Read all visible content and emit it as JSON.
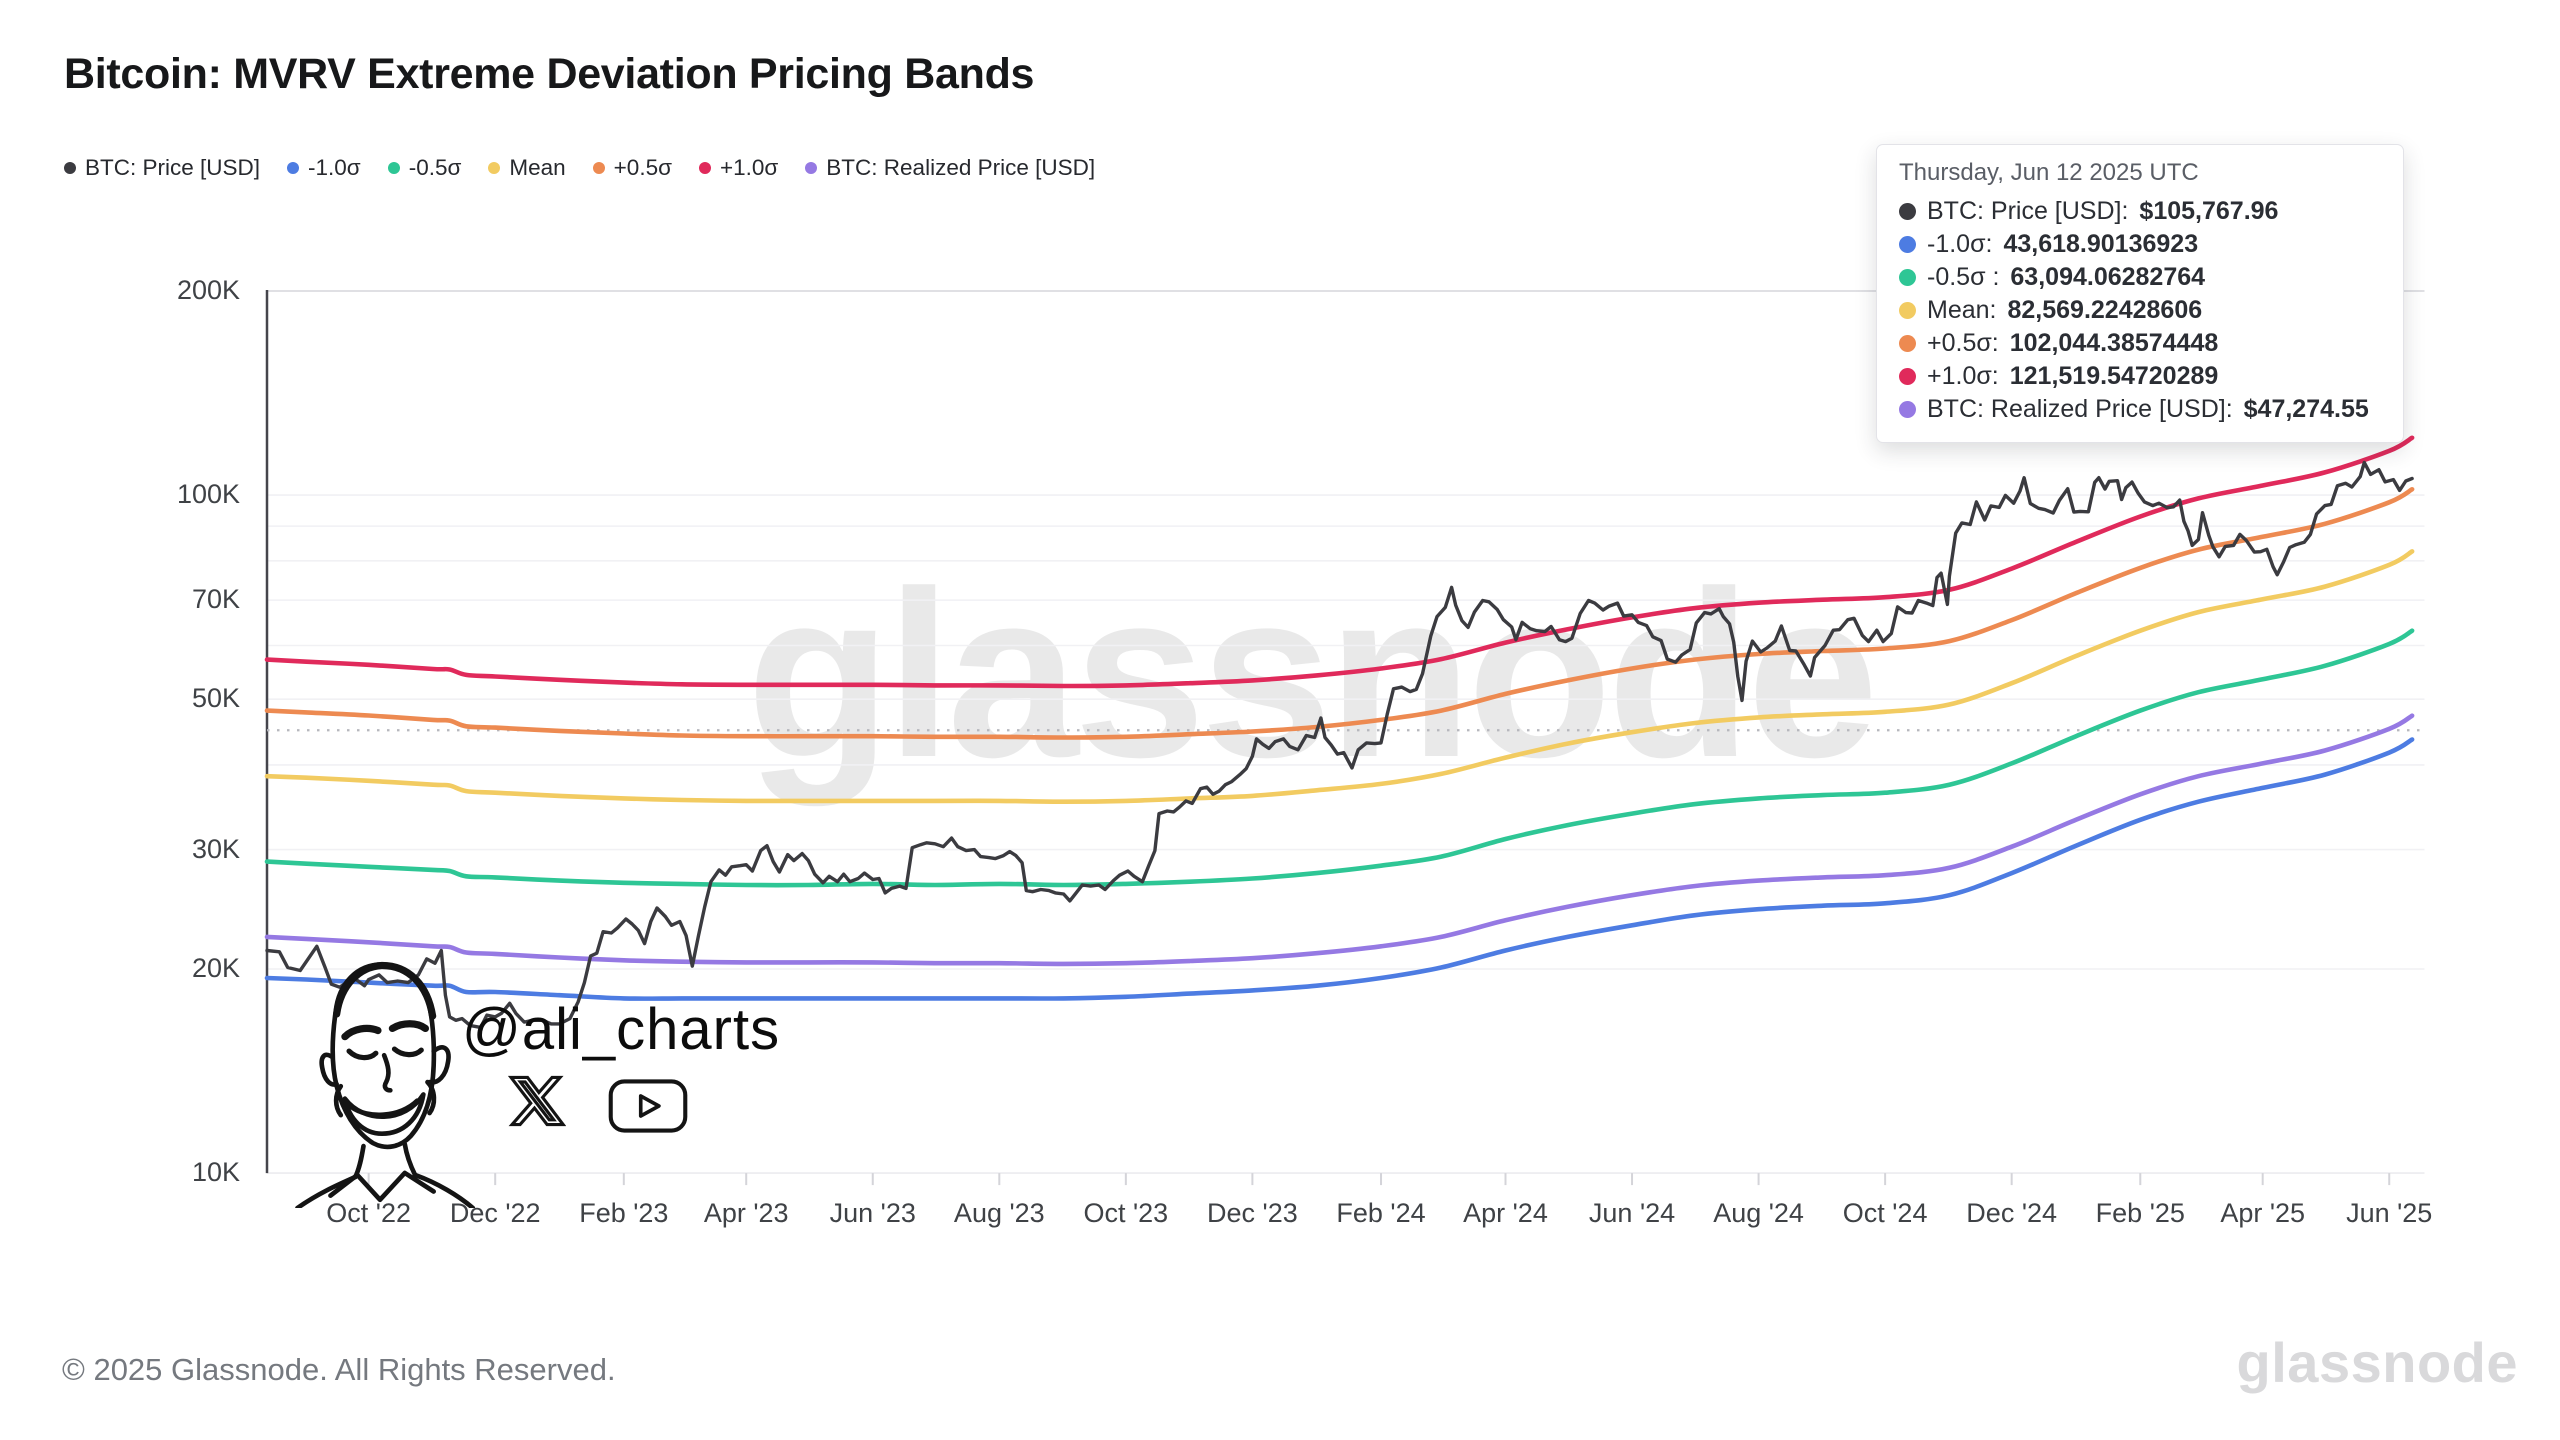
{
  "header": {
    "title": "Bitcoin: MVRV Extreme Deviation Pricing Bands"
  },
  "colors": {
    "btc": "#3B3B40",
    "minus1": "#4D7CE2",
    "minus05": "#2EC695",
    "mean": "#F2CB61",
    "plus05": "#ED8A51",
    "plus1": "#E02A5B",
    "realized": "#9579E3",
    "grid": "#f1f1f4",
    "grid_top": "#d6d6db",
    "axis": "#45454c",
    "crosshair": "#b6b7bd"
  },
  "legend": {
    "items": [
      {
        "label": "BTC: Price [USD]",
        "color": "#3B3B40"
      },
      {
        "label": "-1.0σ",
        "color": "#4D7CE2"
      },
      {
        "label": "-0.5σ",
        "color": "#2EC695"
      },
      {
        "label": "Mean",
        "color": "#F2CB61"
      },
      {
        "label": "+0.5σ",
        "color": "#ED8A51"
      },
      {
        "label": "+1.0σ",
        "color": "#E02A5B"
      },
      {
        "label": "BTC: Realized Price [USD]",
        "color": "#9579E3"
      }
    ]
  },
  "tooltip": {
    "date": "Thursday, Jun 12 2025 UTC",
    "rows": [
      {
        "label": "BTC: Price [USD]:",
        "value": "$105,767.96",
        "color": "#3B3B40"
      },
      {
        "label": "-1.0σ:",
        "value": "43,618.90136923",
        "color": "#4D7CE2"
      },
      {
        "label": "-0.5σ :",
        "value": "63,094.06282764",
        "color": "#2EC695"
      },
      {
        "label": "Mean:",
        "value": "82,569.22428606",
        "color": "#F2CB61"
      },
      {
        "label": "+0.5σ:",
        "value": "102,044.38574448",
        "color": "#ED8A51"
      },
      {
        "label": "+1.0σ:",
        "value": "121,519.54720289",
        "color": "#E02A5B"
      },
      {
        "label": "BTC: Realized Price [USD]:",
        "value": "$47,274.55",
        "color": "#9579E3"
      }
    ]
  },
  "watermarks": {
    "center": "glassnode",
    "handle": "@ali_charts",
    "footer_logo": "glassnode"
  },
  "footer": {
    "copyright": "© 2025 Glassnode. All Rights Reserved."
  },
  "chart_data": {
    "type": "line",
    "title": "Bitcoin: MVRV Extreme Deviation Pricing Bands",
    "y_axis": {
      "scale": "log",
      "units": "USD (thousands)",
      "range_k": [
        10,
        200
      ],
      "ticks": [
        {
          "value_k": 200,
          "label": "200K"
        },
        {
          "value_k": 100,
          "label": "100K"
        },
        {
          "value_k": 70,
          "label": "70K"
        },
        {
          "value_k": 50,
          "label": "50K"
        },
        {
          "value_k": 30,
          "label": "30K"
        },
        {
          "value_k": 20,
          "label": "20K"
        },
        {
          "value_k": 10,
          "label": "10K"
        }
      ],
      "gridline_values_k": [
        200,
        100,
        90,
        80,
        70,
        60,
        50,
        40,
        30,
        20
      ]
    },
    "x_axis": {
      "unit": "days since 2022-08-13",
      "start_date": "2022-08-13",
      "end_date": "2025-06-18",
      "day_span": 1040,
      "ticks": [
        {
          "day": 49,
          "label": "Oct '22"
        },
        {
          "day": 110,
          "label": "Dec '22"
        },
        {
          "day": 172,
          "label": "Feb '23"
        },
        {
          "day": 231,
          "label": "Apr '23"
        },
        {
          "day": 292,
          "label": "Jun '23"
        },
        {
          "day": 353,
          "label": "Aug '23"
        },
        {
          "day": 414,
          "label": "Oct '23"
        },
        {
          "day": 475,
          "label": "Dec '23"
        },
        {
          "day": 537,
          "label": "Feb '24"
        },
        {
          "day": 597,
          "label": "Apr '24"
        },
        {
          "day": 658,
          "label": "Jun '24"
        },
        {
          "day": 719,
          "label": "Aug '24"
        },
        {
          "day": 780,
          "label": "Oct '24"
        },
        {
          "day": 841,
          "label": "Dec '24"
        },
        {
          "day": 903,
          "label": "Feb '25"
        },
        {
          "day": 962,
          "label": "Apr '25"
        },
        {
          "day": 1023,
          "label": "Jun '25"
        }
      ]
    },
    "crosshair_value_k": 45,
    "band_days": [
      0,
      19,
      49,
      80,
      88,
      96,
      110,
      141,
      172,
      200,
      231,
      261,
      292,
      322,
      353,
      384,
      414,
      445,
      475,
      506,
      537,
      566,
      597,
      627,
      658,
      688,
      719,
      750,
      780,
      811,
      841,
      872,
      903,
      931,
      962,
      992,
      1023,
      1034
    ],
    "series": [
      {
        "name": "+1.0σ",
        "color": "#E02A5B",
        "width": 4.6,
        "kind": "band",
        "values_k": [
          57.2,
          56.8,
          56.2,
          55.4,
          55.3,
          54.3,
          54.0,
          53.4,
          52.9,
          52.6,
          52.5,
          52.5,
          52.5,
          52.4,
          52.4,
          52.3,
          52.4,
          52.8,
          53.3,
          54.2,
          55.5,
          57.3,
          60.6,
          63.4,
          66.0,
          68.1,
          69.4,
          70.1,
          70.7,
          72.5,
          77.9,
          85.3,
          93.0,
          98.9,
          103.3,
          108.0,
          116.2,
          121.5
        ]
      },
      {
        "name": "+0.5σ",
        "color": "#ED8A51",
        "width": 4.6,
        "kind": "band",
        "values_k": [
          48.1,
          47.8,
          47.3,
          46.6,
          46.5,
          45.6,
          45.4,
          44.9,
          44.5,
          44.2,
          44.1,
          44.1,
          44.1,
          44.0,
          44.0,
          43.9,
          44.0,
          44.4,
          44.8,
          45.5,
          46.6,
          48.1,
          50.9,
          53.3,
          55.5,
          57.2,
          58.3,
          58.9,
          59.4,
          60.9,
          65.4,
          71.7,
          78.1,
          83.1,
          86.8,
          90.7,
          97.6,
          102.0
        ]
      },
      {
        "name": "Mean",
        "color": "#F2CB61",
        "width": 4.6,
        "kind": "band",
        "values_k": [
          38.5,
          38.3,
          37.9,
          37.4,
          37.3,
          36.6,
          36.4,
          36.0,
          35.7,
          35.5,
          35.4,
          35.4,
          35.4,
          35.4,
          35.4,
          35.3,
          35.4,
          35.7,
          36.0,
          36.7,
          37.5,
          38.8,
          41.0,
          43.0,
          44.7,
          46.1,
          47.0,
          47.5,
          47.9,
          49.1,
          52.8,
          57.9,
          63.1,
          67.2,
          70.2,
          73.3,
          78.9,
          82.6
        ]
      },
      {
        "name": "-0.5σ",
        "color": "#2EC695",
        "width": 4.6,
        "kind": "band",
        "values_k": [
          28.8,
          28.6,
          28.3,
          28.0,
          27.9,
          27.4,
          27.3,
          27.0,
          26.8,
          26.7,
          26.6,
          26.6,
          26.7,
          26.6,
          26.7,
          26.6,
          26.7,
          26.9,
          27.2,
          27.7,
          28.4,
          29.3,
          31.1,
          32.6,
          33.9,
          35.0,
          35.7,
          36.1,
          36.4,
          37.4,
          40.2,
          44.1,
          48.1,
          51.2,
          53.5,
          56.0,
          60.3,
          63.1
        ]
      },
      {
        "name": "-1.0σ",
        "color": "#4D7CE2",
        "width": 4.6,
        "kind": "band",
        "values_k": [
          19.4,
          19.3,
          19.1,
          18.9,
          18.9,
          18.5,
          18.5,
          18.3,
          18.1,
          18.1,
          18.1,
          18.1,
          18.1,
          18.1,
          18.1,
          18.1,
          18.2,
          18.4,
          18.6,
          18.9,
          19.4,
          20.1,
          21.3,
          22.3,
          23.2,
          24.0,
          24.5,
          24.8,
          25.0,
          25.7,
          27.7,
          30.4,
          33.2,
          35.3,
          37.0,
          38.7,
          41.7,
          43.6
        ]
      },
      {
        "name": "BTC: Realized Price [USD]",
        "color": "#9579E3",
        "width": 4.6,
        "kind": "band",
        "values_k": [
          22.3,
          22.15,
          21.9,
          21.6,
          21.55,
          21.15,
          21.05,
          20.8,
          20.6,
          20.5,
          20.45,
          20.45,
          20.45,
          20.4,
          20.4,
          20.35,
          20.4,
          20.55,
          20.75,
          21.1,
          21.6,
          22.3,
          23.6,
          24.7,
          25.7,
          26.5,
          27.0,
          27.3,
          27.5,
          28.2,
          30.3,
          33.2,
          36.2,
          38.5,
          40.2,
          42.0,
          45.2,
          47.27
        ]
      },
      {
        "name": "BTC: Price [USD]",
        "color": "#3B3B40",
        "width": 3.4,
        "kind": "price",
        "days": [
          0,
          6,
          10,
          16,
          24,
          28,
          31,
          35,
          42,
          47,
          49,
          54,
          58,
          63,
          68,
          73,
          77,
          81,
          84,
          86,
          88,
          91,
          94,
          98,
          103,
          106,
          110,
          113,
          117,
          120,
          124,
          128,
          133,
          137,
          141,
          146,
          150,
          153,
          156,
          159,
          162,
          166,
          169,
          173,
          176,
          179,
          182,
          185,
          188,
          192,
          195,
          199,
          202,
          205,
          208,
          211,
          214,
          218,
          221,
          224,
          228,
          231,
          234,
          238,
          241,
          244,
          247,
          251,
          254,
          258,
          261,
          264,
          268,
          271,
          275,
          278,
          281,
          285,
          288,
          292,
          295,
          298,
          301,
          305,
          308,
          311,
          315,
          318,
          322,
          326,
          330,
          333,
          337,
          341,
          344,
          348,
          351,
          355,
          358,
          361,
          364,
          366,
          369,
          373,
          377,
          380,
          384,
          387,
          390,
          393,
          397,
          401,
          404,
          408,
          411,
          415,
          418,
          422,
          425,
          428,
          430,
          434,
          437,
          440,
          443,
          446,
          450,
          453,
          456,
          459,
          462,
          465,
          469,
          472,
          475,
          477,
          480,
          483,
          486,
          490,
          493,
          497,
          501,
          505,
          508,
          510,
          513,
          516,
          519,
          523,
          526,
          530,
          534,
          537,
          540,
          543,
          547,
          551,
          554,
          557,
          561,
          564,
          568,
          571,
          573,
          576,
          579,
          582,
          586,
          589,
          593,
          596,
          600,
          602,
          605,
          609,
          612,
          616,
          619,
          623,
          626,
          629,
          633,
          637,
          640,
          644,
          647,
          651,
          654,
          658,
          661,
          665,
          668,
          672,
          675,
          679,
          682,
          686,
          689,
          693,
          696,
          700,
          702,
          705,
          707,
          709,
          711,
          713,
          716,
          720,
          723,
          727,
          730,
          734,
          737,
          741,
          744,
          746,
          751,
          755,
          758,
          762,
          765,
          769,
          772,
          776,
          779,
          783,
          786,
          790,
          793,
          796,
          800,
          803,
          805,
          807,
          810,
          811,
          814,
          817,
          821,
          824,
          828,
          831,
          835,
          838,
          842,
          845,
          847,
          850,
          854,
          857,
          861,
          864,
          868,
          871,
          874,
          878,
          881,
          883,
          886,
          888,
          892,
          894,
          896,
          899,
          902,
          905,
          909,
          912,
          916,
          919,
          922,
          924,
          926,
          928,
          931,
          933,
          936,
          938,
          941,
          944,
          948,
          951,
          954,
          958,
          961,
          964,
          967,
          969,
          972,
          975,
          978,
          982,
          985,
          988,
          992,
          995,
          998,
          1002,
          1005,
          1009,
          1011,
          1014,
          1018,
          1021,
          1025,
          1028,
          1031,
          1034
        ],
        "values_k": [
          21.3,
          21.2,
          20.1,
          19.9,
          21.6,
          20.1,
          19.0,
          18.8,
          19.4,
          18.9,
          19.3,
          19.6,
          19.1,
          19.2,
          19.1,
          19.6,
          20.7,
          20.4,
          21.3,
          18.3,
          17.0,
          16.8,
          16.9,
          16.5,
          16.4,
          17.1,
          17.0,
          17.2,
          17.8,
          17.2,
          16.7,
          16.8,
          16.8,
          16.6,
          16.6,
          16.9,
          17.9,
          19.1,
          20.9,
          21.1,
          22.7,
          22.6,
          23.0,
          23.7,
          23.3,
          22.8,
          21.8,
          23.5,
          24.6,
          23.9,
          23.2,
          23.5,
          22.4,
          20.2,
          22.4,
          24.7,
          26.9,
          28.0,
          27.5,
          28.3,
          28.4,
          28.5,
          27.9,
          29.9,
          30.4,
          28.8,
          27.8,
          29.5,
          28.9,
          29.6,
          28.9,
          27.6,
          26.8,
          27.4,
          26.9,
          27.6,
          26.9,
          27.2,
          27.7,
          27.1,
          27.2,
          25.9,
          26.3,
          26.5,
          26.3,
          30.2,
          30.5,
          30.7,
          30.6,
          30.3,
          31.2,
          30.3,
          29.9,
          30.0,
          29.3,
          29.2,
          29.1,
          29.4,
          29.8,
          29.4,
          28.7,
          26.1,
          26.0,
          26.2,
          26.1,
          25.9,
          25.8,
          25.2,
          25.9,
          26.6,
          26.5,
          26.6,
          26.2,
          27.0,
          27.5,
          27.9,
          27.4,
          26.9,
          28.4,
          29.9,
          33.9,
          34.2,
          34.1,
          34.7,
          35.4,
          35.1,
          36.9,
          37.1,
          36.2,
          36.6,
          37.4,
          37.8,
          38.7,
          39.5,
          41.2,
          43.7,
          42.9,
          42.3,
          43.3,
          43.7,
          42.6,
          42.1,
          44.2,
          43.9,
          46.9,
          43.9,
          42.8,
          41.5,
          41.7,
          39.6,
          42.1,
          43.1,
          43.0,
          43.1,
          47.5,
          51.8,
          52.1,
          51.3,
          51.7,
          54.5,
          62.0,
          66.2,
          68.3,
          73.1,
          68.8,
          65.3,
          63.8,
          67.2,
          69.9,
          69.6,
          67.8,
          65.5,
          63.9,
          61.2,
          64.9,
          63.5,
          63.1,
          62.9,
          64.0,
          61.2,
          60.8,
          61.5,
          66.9,
          69.9,
          69.3,
          67.7,
          68.6,
          69.3,
          66.3,
          66.6,
          64.9,
          64.2,
          61.8,
          61.0,
          57.3,
          56.7,
          58.1,
          59.2,
          64.8,
          67.1,
          66.8,
          68.0,
          66.2,
          64.6,
          60.7,
          54.0,
          49.8,
          56.9,
          60.9,
          58.7,
          59.5,
          60.9,
          64.1,
          59.0,
          58.9,
          56.2,
          54.1,
          57.6,
          60.0,
          63.2,
          63.3,
          65.5,
          65.8,
          62.1,
          60.8,
          63.2,
          60.8,
          62.5,
          68.4,
          67.1,
          67.0,
          69.9,
          69.3,
          68.7,
          75.6,
          76.7,
          69.0,
          75.9,
          87.9,
          91.0,
          90.5,
          97.7,
          91.9,
          96.4,
          95.9,
          99.9,
          97.3,
          101.4,
          106.1,
          97.2,
          95.6,
          95.2,
          94.1,
          98.2,
          102.2,
          94.4,
          94.6,
          94.5,
          104.4,
          106.1,
          102.1,
          104.8,
          105.0,
          98.5,
          102.5,
          104.5,
          100.6,
          97.7,
          96.5,
          97.3,
          95.8,
          96.1,
          98.3,
          91.5,
          88.6,
          84.3,
          86.0,
          94.2,
          87.2,
          83.9,
          81.1,
          84.0,
          84.3,
          87.5,
          85.8,
          82.4,
          82.5,
          83.2,
          78.4,
          76.3,
          79.6,
          83.7,
          84.5,
          85.2,
          87.5,
          93.8,
          96.5,
          96.9,
          103.2,
          104.1,
          102.8,
          106.5,
          111.7,
          107.3,
          109.0,
          104.6,
          105.4,
          101.6,
          104.9,
          105.8
        ]
      }
    ]
  }
}
